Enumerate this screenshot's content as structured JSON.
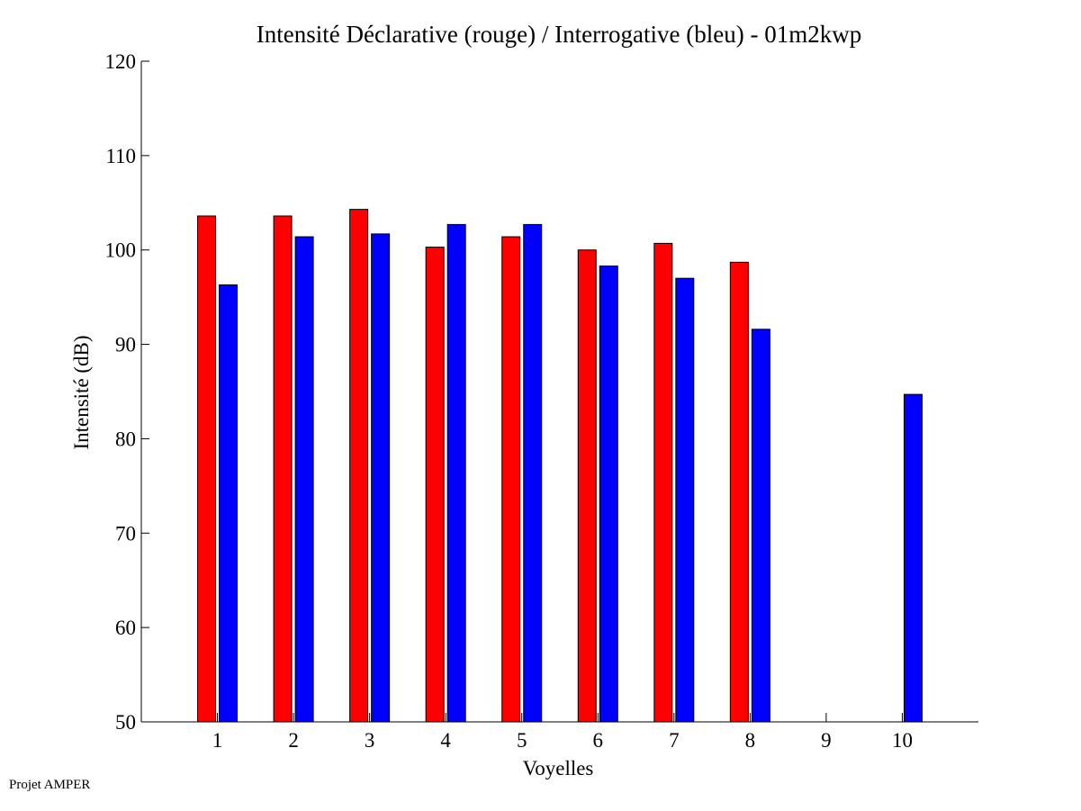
{
  "chart_data": {
    "type": "bar",
    "title": "Intensité Déclarative (rouge) / Interrogative (bleu) - 01m2kwp",
    "xlabel": "Voyelles",
    "ylabel": "Intensité (dB)",
    "categories": [
      "1",
      "2",
      "3",
      "4",
      "5",
      "6",
      "7",
      "8",
      "9",
      "10"
    ],
    "ylim": [
      50,
      120
    ],
    "yticks": [
      50,
      60,
      70,
      80,
      90,
      100,
      110,
      120
    ],
    "xlim": [
      0,
      11
    ],
    "grid": false,
    "series": [
      {
        "color": "#ff0000",
        "values": [
          103.6,
          103.6,
          104.3,
          100.3,
          101.4,
          100.0,
          100.7,
          98.7,
          null,
          null
        ]
      },
      {
        "color": "#0000ff",
        "values": [
          96.3,
          101.4,
          101.7,
          102.7,
          102.7,
          98.3,
          97.0,
          91.6,
          null,
          84.7
        ]
      }
    ]
  },
  "footer": "Projet AMPER"
}
